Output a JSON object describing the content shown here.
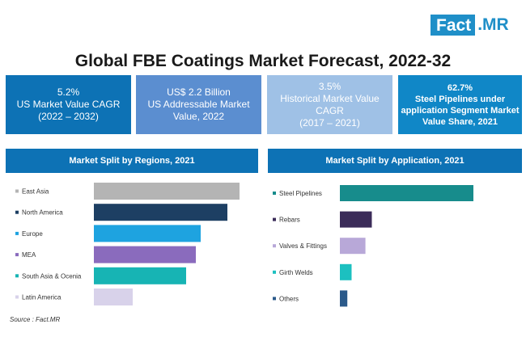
{
  "logo": {
    "left_text": "Fact",
    "right_text": ".MR"
  },
  "title": "Global FBE Coatings Market Forecast, 2022-32",
  "kpis": [
    {
      "line1": "5.2%",
      "line2": "US Market Value CAGR",
      "line3": "(2022 – 2032)"
    },
    {
      "line1": "US$ 2.2 Billion",
      "line2": "US Addressable Market",
      "line3": "Value, 2022"
    },
    {
      "line1": "3.5%",
      "line2": "Historical Market Value",
      "line3": "CAGR",
      "line4": "(2017 – 2021)"
    },
    {
      "line1": "62.7%",
      "line2": "Steel Pipelines under",
      "line3": "application Segment Market",
      "line4": "Value Share, 2021"
    }
  ],
  "source": "Source : Fact.MR",
  "chart_data": [
    {
      "type": "bar",
      "orientation": "horizontal",
      "title": "Market Split by Regions, 2021",
      "categories": [
        "East Asia",
        "North America",
        "Europe",
        "MEA",
        "South Asia & Ocenia",
        "Latin America"
      ],
      "values": [
        30,
        27.5,
        22,
        21,
        19,
        8
      ],
      "colors": [
        "#b4b4b4",
        "#1d3f63",
        "#1ea3e0",
        "#8a6bbd",
        "#17b4b4",
        "#d8d2ea"
      ]
    },
    {
      "type": "bar",
      "orientation": "horizontal",
      "title": "Market Split by Application, 2021",
      "categories": [
        "Steel Pipelines",
        "Rebars",
        "Valves & Fittings",
        "Girth Welds",
        "Others"
      ],
      "values": [
        62.7,
        15,
        12,
        5.5,
        3.5
      ],
      "colors": [
        "#178c8c",
        "#3b2c59",
        "#b8a8d8",
        "#1cc0c0",
        "#2b5a8a"
      ]
    }
  ]
}
